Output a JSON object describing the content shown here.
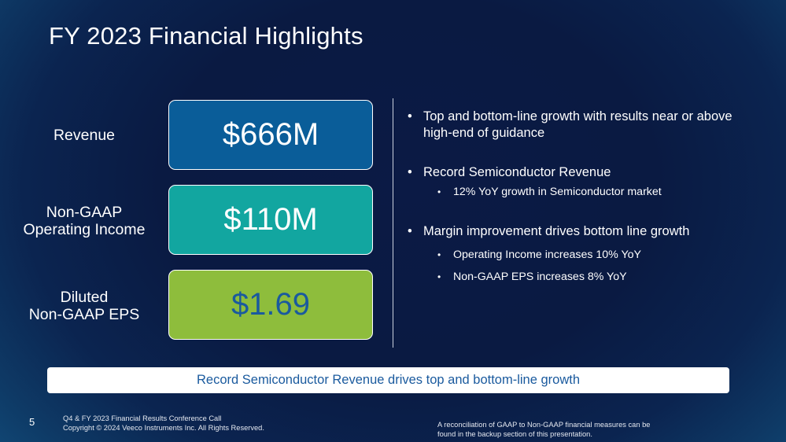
{
  "slide": {
    "title": "FY 2023 Financial Highlights",
    "page_number": "5"
  },
  "metrics": [
    {
      "label_lines": [
        "Revenue"
      ],
      "value": "$666M",
      "box_color": "#0a5d99",
      "text_color": "#ffffff"
    },
    {
      "label_lines": [
        "Non-GAAP",
        "Operating Income"
      ],
      "value": "$110M",
      "box_color": "#12a6a0",
      "text_color": "#ffffff"
    },
    {
      "label_lines": [
        "Diluted",
        "Non-GAAP EPS"
      ],
      "value": "$1.69",
      "box_color": "#8ebd3c",
      "text_color": "#1a5a9e"
    }
  ],
  "bullets": [
    {
      "text": "Top and bottom-line growth with results near or above high-end of guidance",
      "sub": []
    },
    {
      "text": "Record Semiconductor Revenue",
      "sub": [
        "12% YoY growth in Semiconductor market"
      ]
    },
    {
      "text": "Margin improvement drives bottom line growth",
      "sub": [
        "Operating Income increases 10% YoY",
        "Non-GAAP EPS increases 8% YoY"
      ]
    }
  ],
  "banner": {
    "text": "Record Semiconductor Revenue drives top and bottom-line growth"
  },
  "footer": {
    "left_lines": [
      "Q4 & FY 2023 Financial Results Conference Call",
      "Copyright © 2024 Veeco Instruments Inc. All Rights Reserved."
    ],
    "right_lines": [
      "A reconciliation of GAAP to Non-GAAP financial measures can be",
      "found in the backup section of this presentation."
    ]
  }
}
